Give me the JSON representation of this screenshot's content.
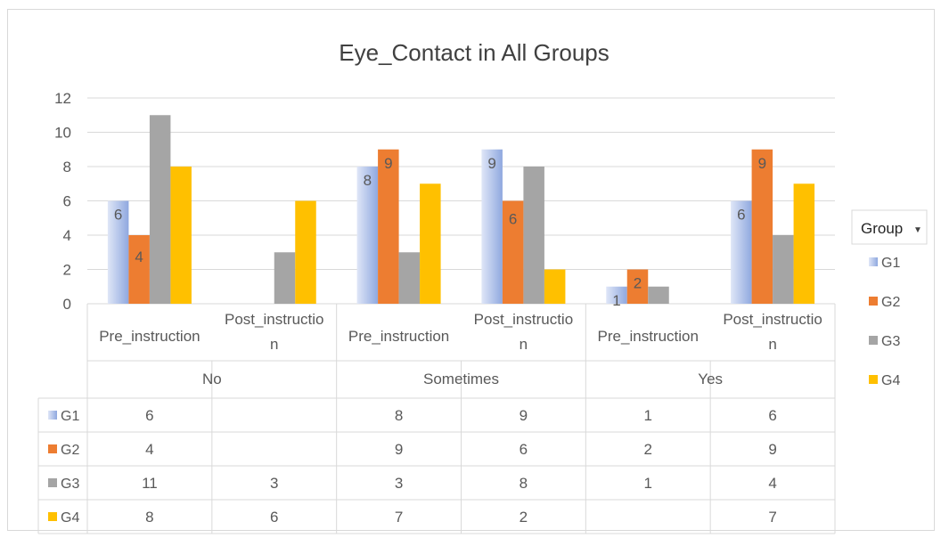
{
  "chart_data": {
    "type": "bar",
    "title": "Eye_Contact in All Groups",
    "ylim": [
      0,
      12
    ],
    "yticks": [
      "0",
      "2",
      "4",
      "6",
      "8",
      "10",
      "12"
    ],
    "grid": true,
    "legend_position": "right",
    "legend_title": "Group",
    "legend_dropdown_glyph": "▼",
    "outer_categories": [
      "No",
      "Sometimes",
      "Yes"
    ],
    "categories": [
      [
        "Pre_instruction"
      ],
      [
        "Post_instructio",
        "n"
      ],
      [
        "Pre_instruction"
      ],
      [
        "Post_instructio",
        "n"
      ],
      [
        "Pre_instruction"
      ],
      [
        "Post_instructio",
        "n"
      ]
    ],
    "series": [
      {
        "name": "G1",
        "values": [
          6,
          null,
          8,
          9,
          1,
          6
        ],
        "labels": [
          "6",
          "",
          "8",
          "9",
          "1",
          "6"
        ]
      },
      {
        "name": "G2",
        "values": [
          4,
          null,
          9,
          6,
          2,
          9
        ],
        "labels": [
          "4",
          "",
          "9",
          "6",
          "2",
          "9"
        ]
      },
      {
        "name": "G3",
        "values": [
          11,
          3,
          3,
          8,
          1,
          4
        ],
        "labels": [
          "",
          "",
          "",
          "",
          "",
          ""
        ]
      },
      {
        "name": "G4",
        "values": [
          8,
          6,
          7,
          2,
          null,
          7
        ],
        "labels": [
          "",
          "",
          "",
          "",
          "",
          ""
        ]
      }
    ],
    "data_table": [
      {
        "name": "G1",
        "cells": [
          "6",
          "",
          "8",
          "9",
          "1",
          "6"
        ]
      },
      {
        "name": "G2",
        "cells": [
          "4",
          "",
          "9",
          "6",
          "2",
          "9"
        ]
      },
      {
        "name": "G3",
        "cells": [
          "11",
          "3",
          "3",
          "8",
          "1",
          "4"
        ]
      },
      {
        "name": "G4",
        "cells": [
          "8",
          "6",
          "7",
          "2",
          "",
          "7"
        ]
      }
    ]
  },
  "colors": {
    "G1_light": "#dfe6f7",
    "G1_dark": "#8fa8df",
    "G2": "#ed7d31",
    "G3": "#a5a5a5",
    "G4": "#ffc000",
    "grid": "#d9d9d9",
    "text": "#595959",
    "title": "#404040",
    "border": "#d9d9d9"
  }
}
